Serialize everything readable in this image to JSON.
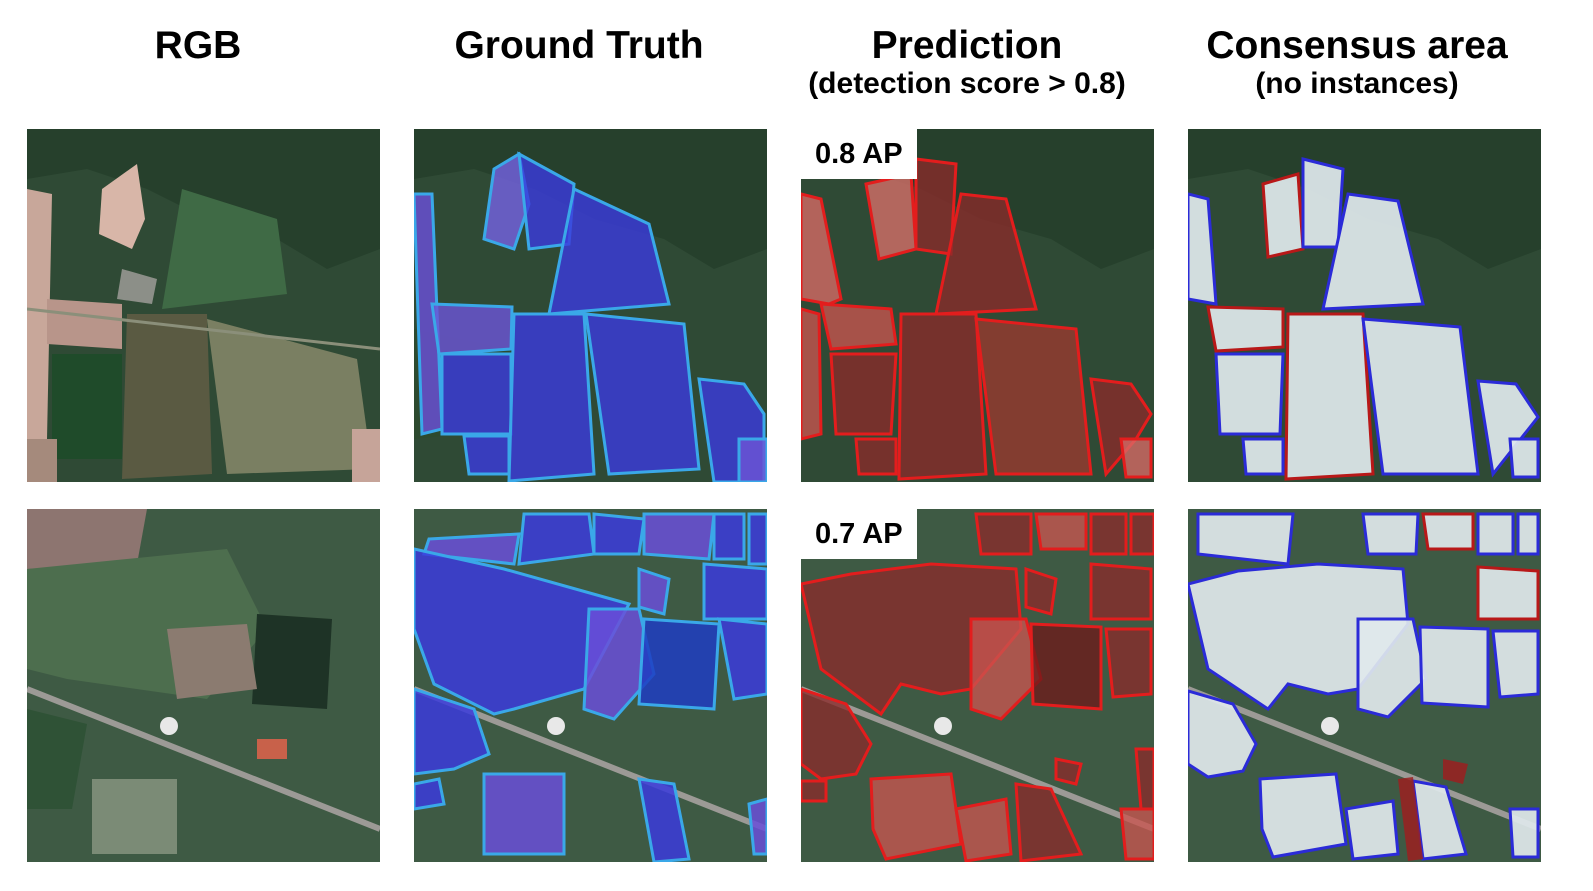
{
  "columns": [
    {
      "title": "RGB",
      "subtitle": ""
    },
    {
      "title": "Ground Truth",
      "subtitle": ""
    },
    {
      "title": "Prediction",
      "subtitle": "(detection score > 0.8)"
    },
    {
      "title": "Consensus area",
      "subtitle": "(no instances)"
    }
  ],
  "rows": [
    {
      "ap_label": "0.8 AP"
    },
    {
      "ap_label": "0.7 AP"
    }
  ],
  "colors": {
    "ground_truth_fill": "#3b3bdc",
    "ground_truth_edge": "#3aa8e8",
    "prediction_fill": "#8a2a2a",
    "prediction_edge": "#e31d1d",
    "consensus_fill": "#dfe8ec",
    "consensus_ground_truth_edge": "#2b2bd8",
    "consensus_prediction_edge": "#b81818"
  }
}
